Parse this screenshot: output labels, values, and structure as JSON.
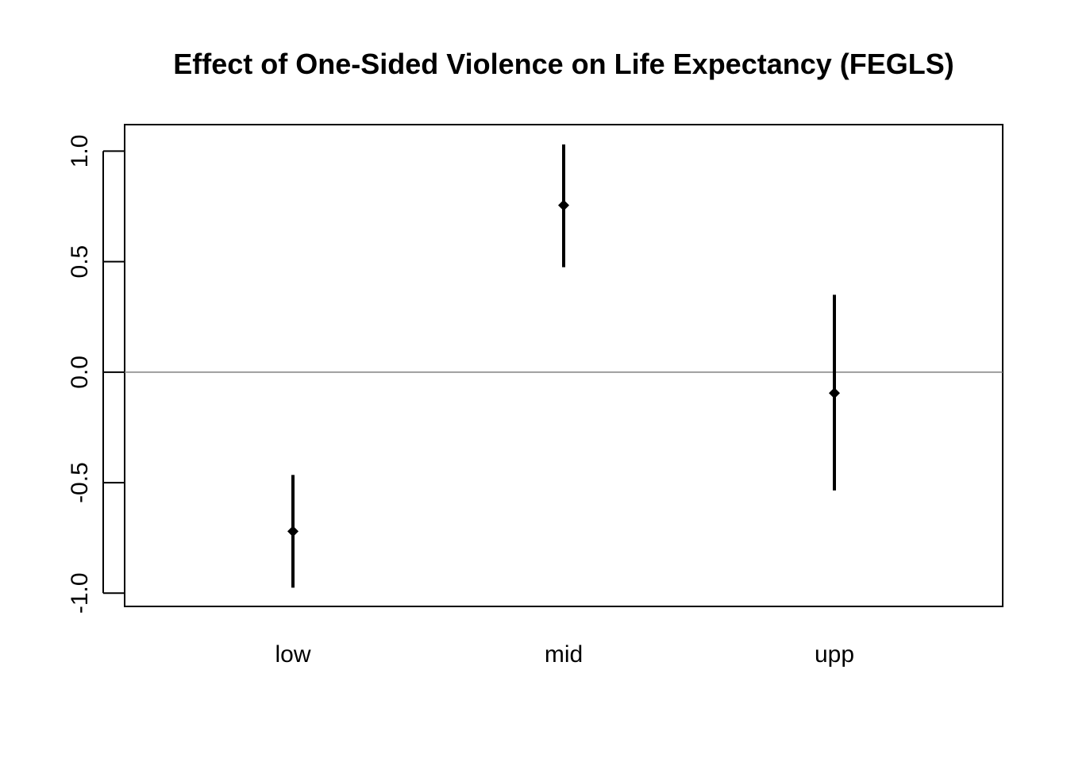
{
  "chart_data": {
    "type": "scatter",
    "title": "Effect of One-Sided Violence on Life Expectancy (FEGLS)",
    "xlabel": "",
    "ylabel": "",
    "categories": [
      "low",
      "mid",
      "upp"
    ],
    "series": [
      {
        "estimates": [
          -0.72,
          0.755,
          -0.095
        ],
        "lower": [
          -0.975,
          0.475,
          -0.535
        ],
        "upper": [
          -0.465,
          1.03,
          0.35
        ]
      }
    ],
    "ylim": [
      -1.06,
      1.12
    ],
    "yticks": [
      -1.0,
      -0.5,
      0.0,
      0.5,
      1.0
    ],
    "ytick_labels": [
      "-1.0",
      "-0.5",
      "0.0",
      "0.5",
      "1.0"
    ],
    "reference_line": 0.0,
    "grid": false,
    "legend": "none",
    "colors": {
      "marks": "#000000",
      "reference_line": "#808080",
      "frame": "#000000"
    }
  }
}
